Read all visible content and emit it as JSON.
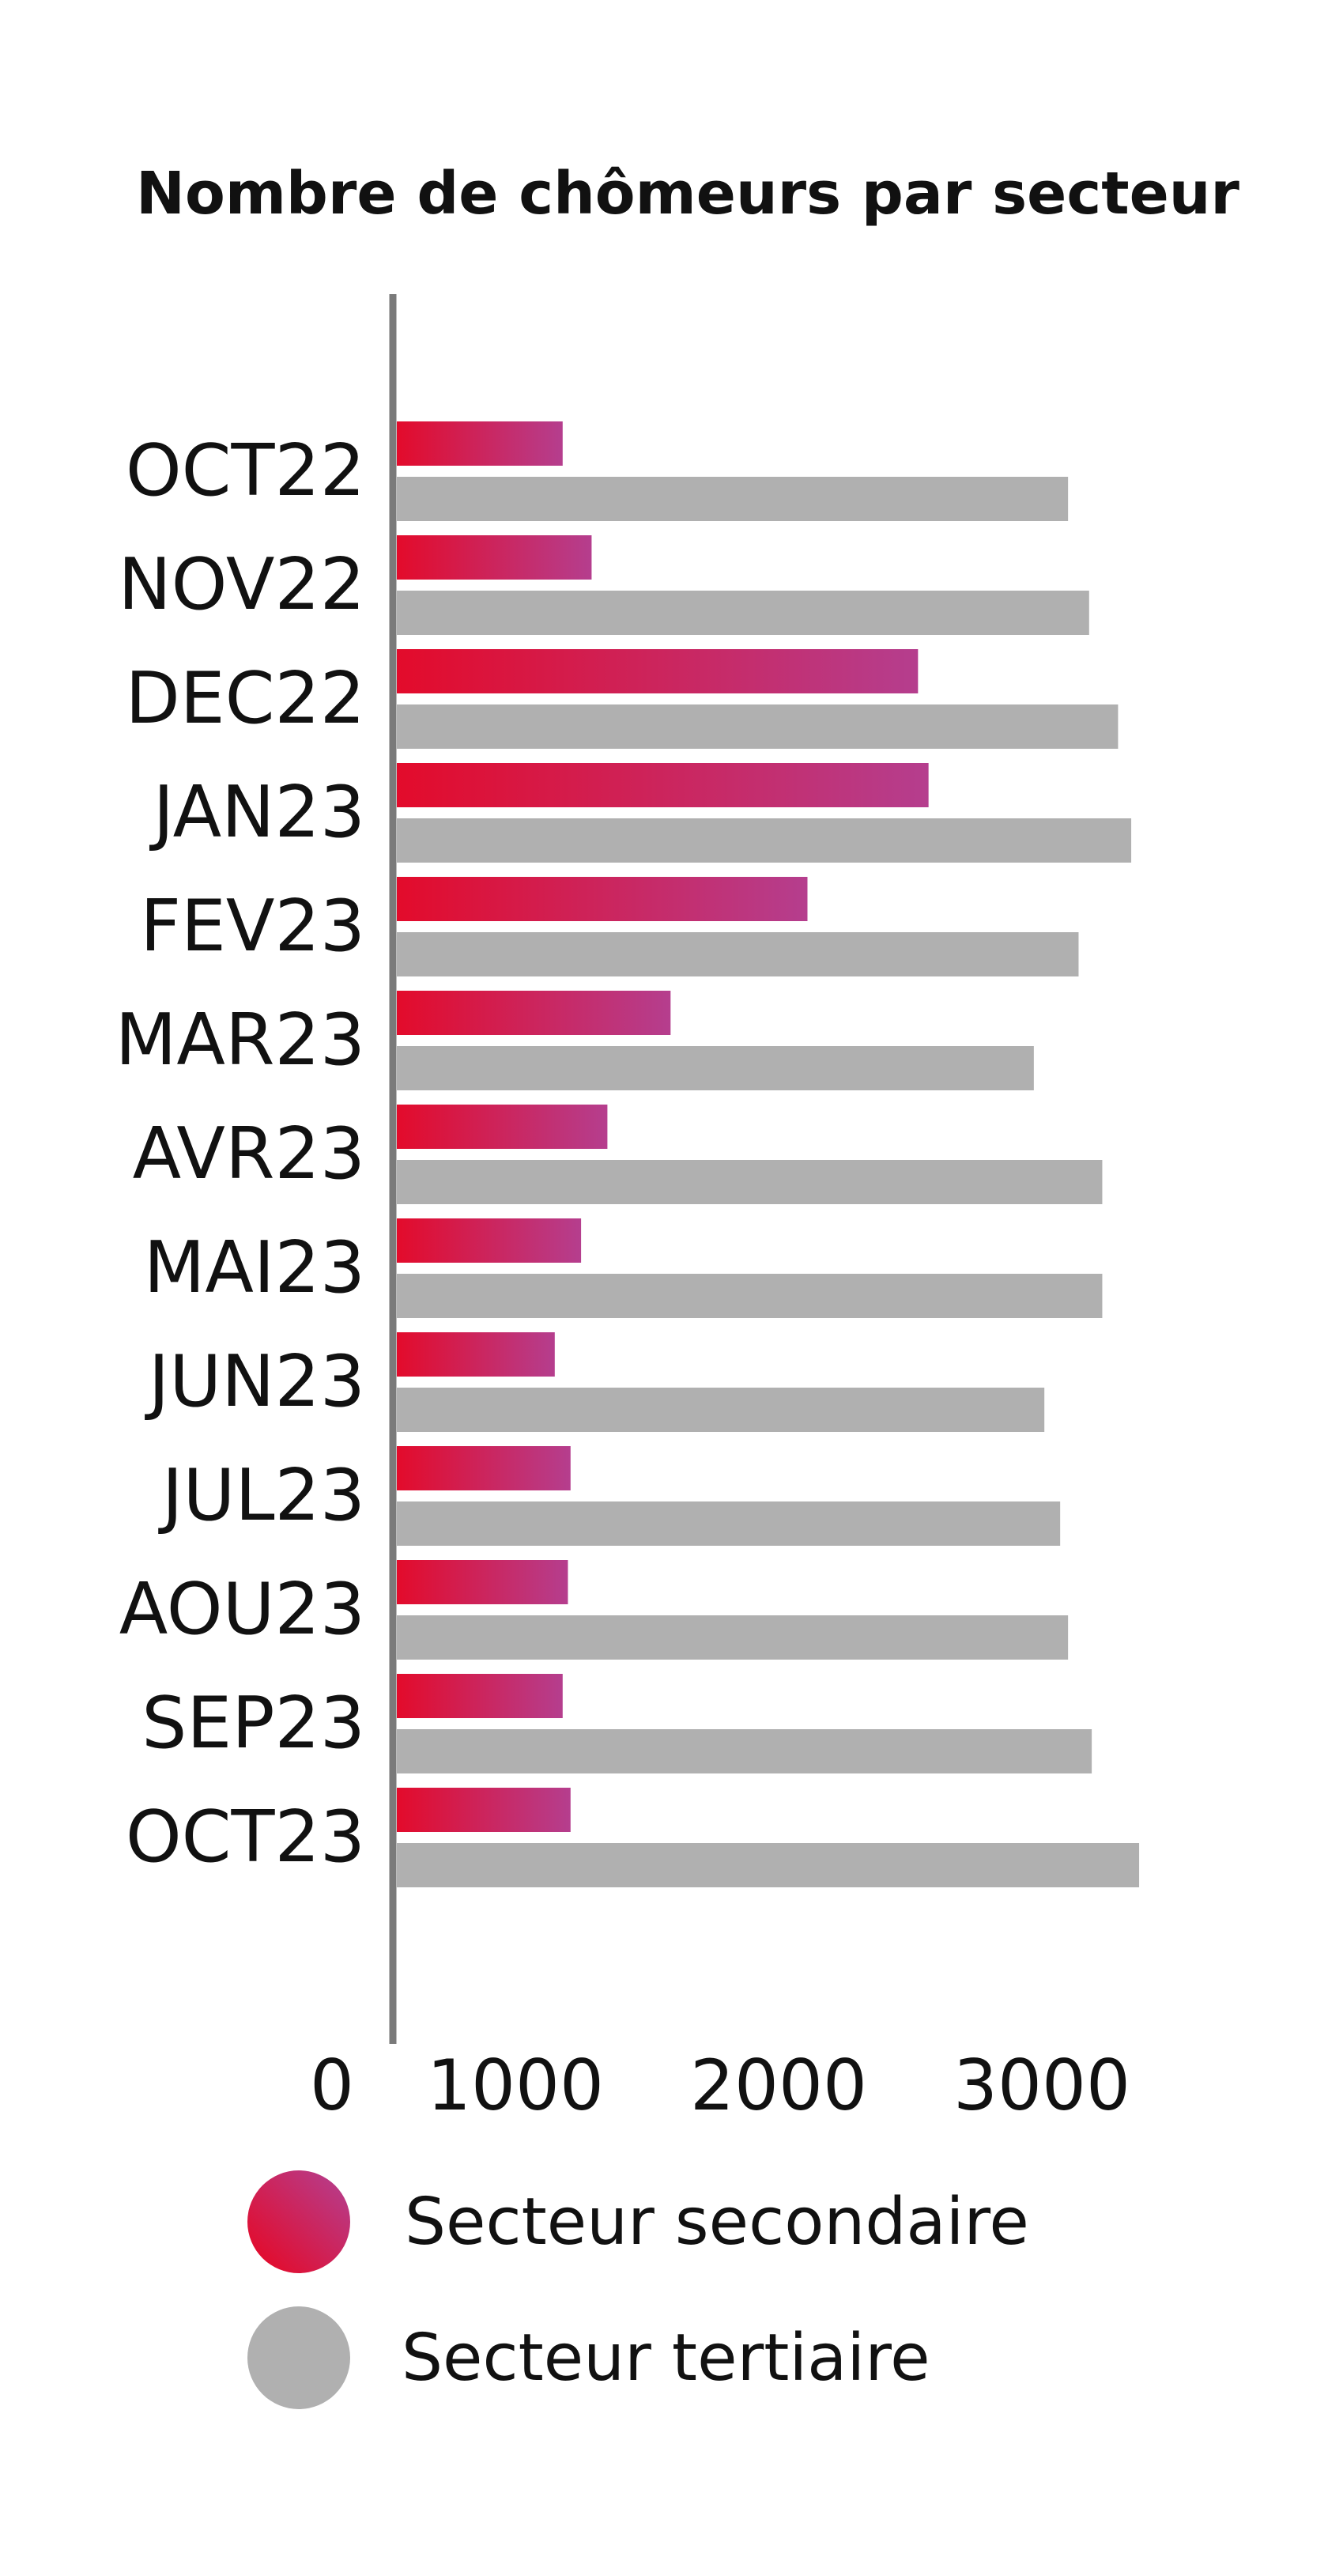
{
  "chart_data": {
    "type": "bar",
    "orientation": "horizontal",
    "title": "Nombre de chômeurs par secteur",
    "xlabel": "",
    "ylabel": "",
    "xlim": [
      0,
      3000
    ],
    "x_ticks": [
      "0",
      "1000",
      "2000",
      "3000"
    ],
    "grid": false,
    "legend_position": "bottom",
    "categories": [
      "OCT22",
      "NOV22",
      "DEC22",
      "JAN23",
      "FEV23",
      "MAR23",
      "AVR23",
      "MAI23",
      "JUN23",
      "JUL23",
      "AOU23",
      "SEP23",
      "OCT23"
    ],
    "series": [
      {
        "name": "Secteur secondaire",
        "color_start": "#e30b2b",
        "color_end": "#b53e8e",
        "values": [
          630,
          740,
          1980,
          2020,
          1560,
          1040,
          800,
          700,
          600,
          660,
          650,
          630,
          660
        ]
      },
      {
        "name": "Secteur tertiaire",
        "color": "#b0b0b0",
        "values": [
          2550,
          2630,
          2740,
          2790,
          2590,
          2420,
          2680,
          2680,
          2460,
          2520,
          2550,
          2640,
          2820
        ]
      }
    ]
  }
}
